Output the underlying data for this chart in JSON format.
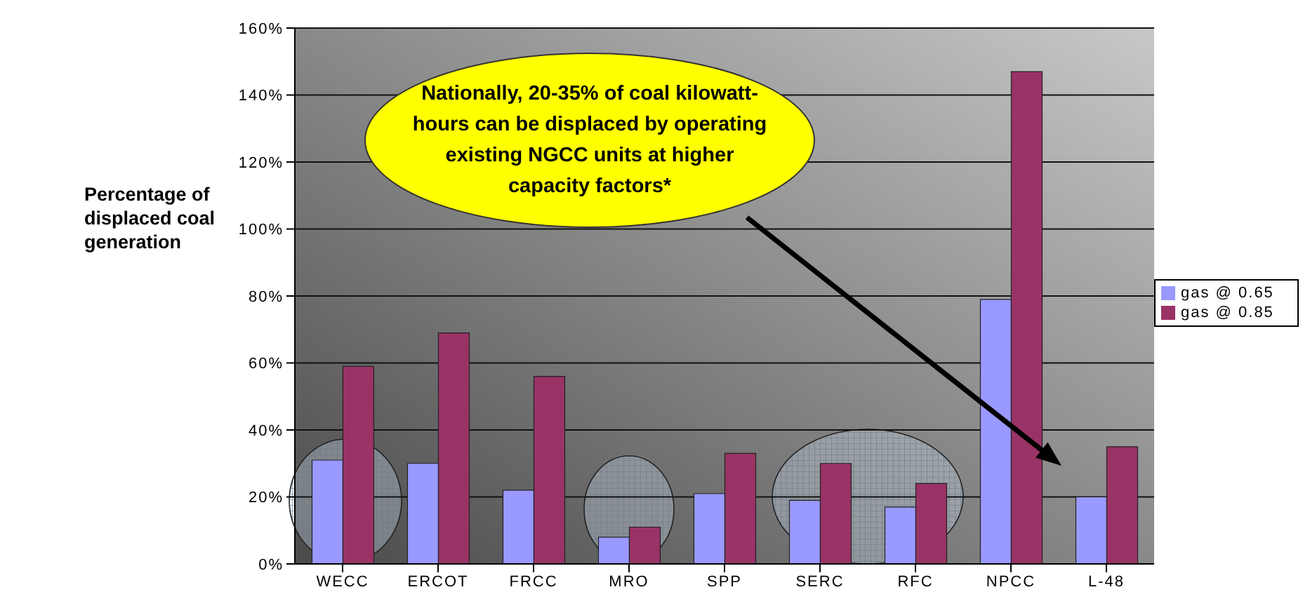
{
  "chart_data": {
    "type": "bar",
    "ylabel": "Percentage of displaced coal generation",
    "categories": [
      "WECC",
      "ERCOT",
      "FRCC",
      "MRO",
      "SPP",
      "SERC",
      "RFC",
      "NPCC",
      "L-48"
    ],
    "series": [
      {
        "name": "gas @ 0.65",
        "color": "#9999ff",
        "values": [
          31,
          30,
          22,
          8,
          21,
          19,
          17,
          79,
          20
        ]
      },
      {
        "name": "gas @ 0.85",
        "color": "#993366",
        "values": [
          59,
          69,
          56,
          11,
          33,
          30,
          24,
          147,
          35
        ]
      }
    ],
    "ylim": [
      0,
      160
    ],
    "yticks": [
      {
        "value": 0,
        "label": "0%"
      },
      {
        "value": 20,
        "label": "20%"
      },
      {
        "value": 40,
        "label": "40%"
      },
      {
        "value": 60,
        "label": "60%"
      },
      {
        "value": 80,
        "label": "80%"
      },
      {
        "value": 100,
        "label": "100%"
      },
      {
        "value": 120,
        "label": "120%"
      },
      {
        "value": 140,
        "label": "140%"
      },
      {
        "value": 160,
        "label": "160%"
      }
    ],
    "grid": "y",
    "legend": "right",
    "annotations": [
      "Nationally, 20-35% of coal kilowatt-hours can be displaced by operating existing NGCC units at higher capacity factors*"
    ]
  }
}
